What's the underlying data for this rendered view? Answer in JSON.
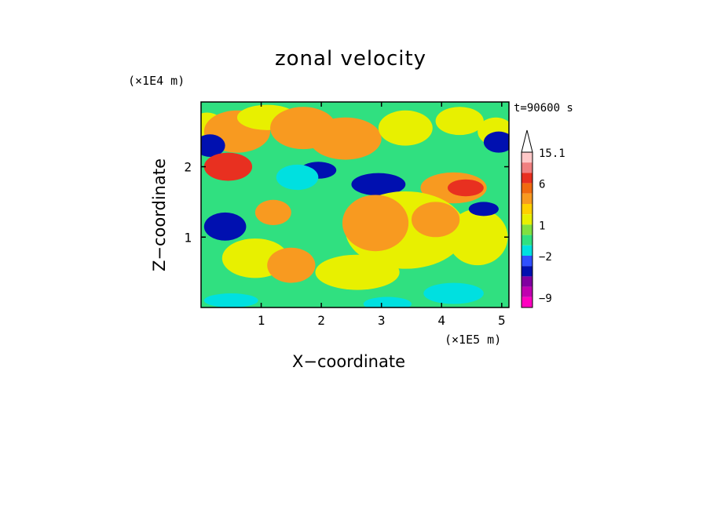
{
  "chart_data": {
    "type": "heatmap",
    "title": "zonal velocity",
    "xlabel": "X−coordinate",
    "ylabel": "Z−coordinate",
    "x_multiplier": "(×1E5 m)",
    "y_multiplier": "(×1E4 m)",
    "time_label": "t=90600 s",
    "xlim": [
      0,
      5.12
    ],
    "ylim": [
      0,
      2.92
    ],
    "x_ticks": [
      "1",
      "2",
      "3",
      "4",
      "5"
    ],
    "x_tick_values": [
      1,
      2,
      3,
      4,
      5
    ],
    "y_ticks": [
      "1",
      "2"
    ],
    "y_tick_values": [
      1,
      2
    ],
    "grid": false,
    "colorbar": {
      "labels": [
        "15.1",
        "6",
        "1",
        "−2",
        "−9"
      ],
      "levels_high_to_low": [
        15.1,
        12,
        9,
        6,
        4,
        3,
        2,
        1,
        0,
        -1,
        -2,
        -3,
        -5,
        -7,
        -9,
        -11,
        -13
      ],
      "colors_high_to_low": [
        "#ffc8c8",
        "#f08080",
        "#e83020",
        "#f06a10",
        "#f89a20",
        "#ffd000",
        "#e8f000",
        "#80e040",
        "#30e080",
        "#00e0e0",
        "#3050ff",
        "#0010b0",
        "#8000a0",
        "#c000b0",
        "#ff00c0"
      ]
    },
    "colors": {
      "strong_negative": "#0010b0",
      "weak_negative": "#00e0e0",
      "near_zero": "#30e080",
      "weak_positive": "#e8f000",
      "moderate_positive": "#f89a20",
      "strong_positive": "#e83020"
    }
  }
}
